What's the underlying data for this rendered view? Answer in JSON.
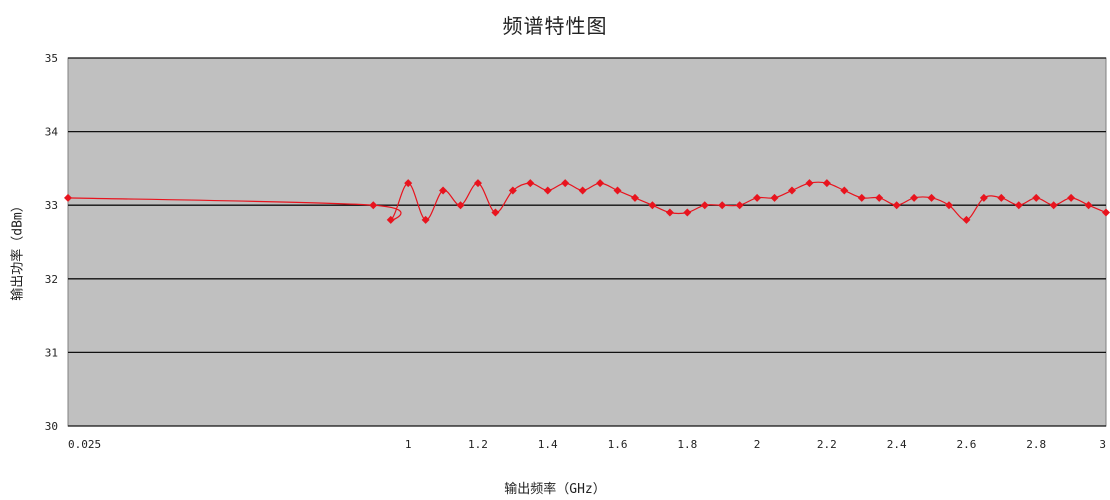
{
  "chart_data": {
    "type": "line",
    "title": "频谱特性图",
    "xlabel": "输出频率（GHz）",
    "ylabel": "输出功率（dBm）",
    "ylim": [
      30,
      35
    ],
    "xlim": [
      0.025,
      3
    ],
    "y_ticks": [
      "30",
      "31",
      "32",
      "33",
      "34",
      "35"
    ],
    "x_ticks": [
      "0.025",
      "1",
      "1.2",
      "1.4",
      "1.6",
      "1.8",
      "2",
      "2.2",
      "2.4",
      "2.6",
      "2.8",
      "3"
    ],
    "grid": true,
    "legend": "none",
    "plot_background": "#c0c0c0",
    "line_color": "#e8141e",
    "series": [
      {
        "x": [
          0.025,
          0.9,
          0.95,
          1.0,
          1.05,
          1.1,
          1.15,
          1.2,
          1.25,
          1.3,
          1.35,
          1.4,
          1.45,
          1.5,
          1.55,
          1.6,
          1.65,
          1.7,
          1.75,
          1.8,
          1.85,
          1.9,
          1.95,
          2.0,
          2.05,
          2.1,
          2.15,
          2.2,
          2.25,
          2.3,
          2.35,
          2.4,
          2.45,
          2.5,
          2.55,
          2.6,
          2.65,
          2.7,
          2.75,
          2.8,
          2.85,
          2.9,
          2.95,
          3.0
        ],
        "values": [
          33.1,
          33.0,
          32.8,
          33.3,
          32.8,
          33.2,
          33.0,
          33.3,
          32.9,
          33.2,
          33.3,
          33.2,
          33.3,
          33.2,
          33.3,
          33.2,
          33.1,
          33.0,
          32.9,
          32.9,
          33.0,
          33.0,
          33.0,
          33.1,
          33.1,
          33.2,
          33.3,
          33.3,
          33.2,
          33.1,
          33.1,
          33.0,
          33.1,
          33.1,
          33.0,
          32.8,
          33.1,
          33.1,
          33.0,
          33.1,
          33.0,
          33.1,
          33.0,
          32.9
        ]
      }
    ]
  }
}
